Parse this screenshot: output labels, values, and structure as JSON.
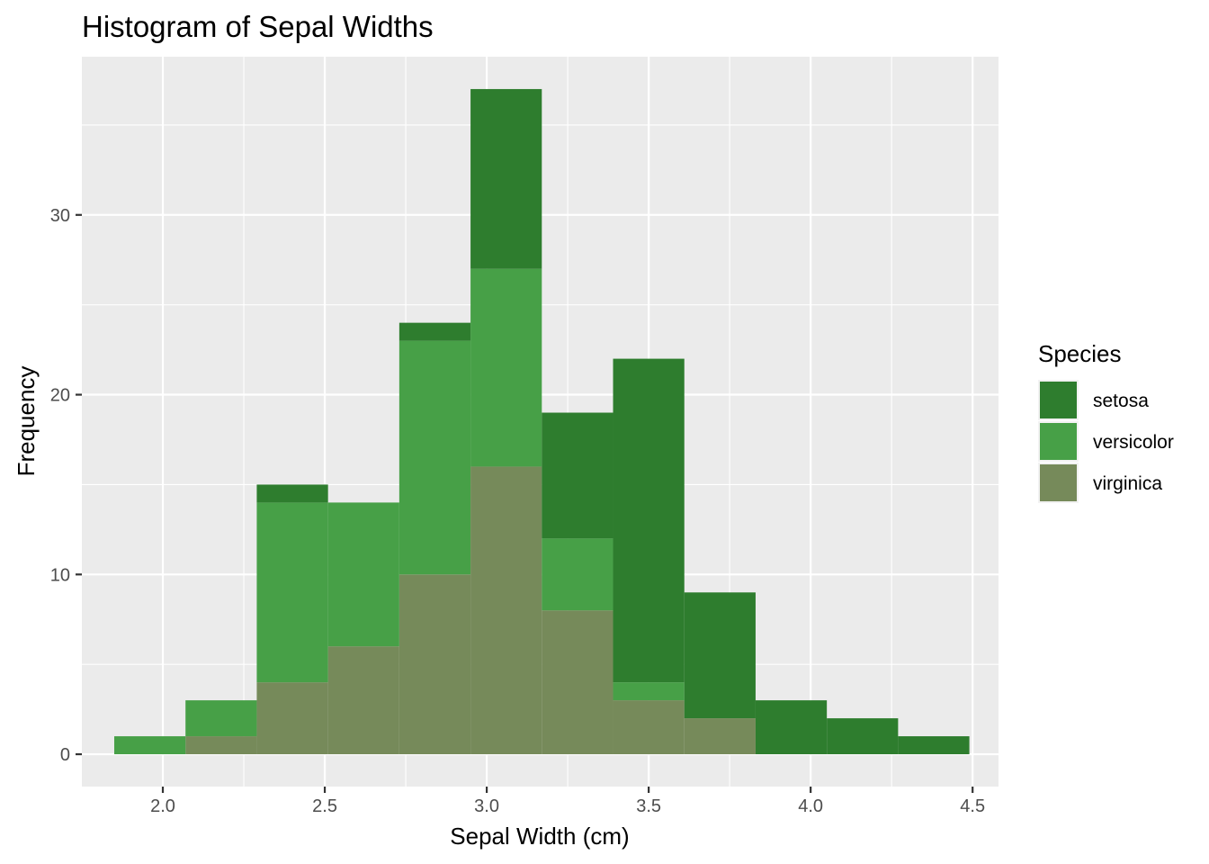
{
  "chart_data": {
    "type": "bar",
    "title": "Histogram of Sepal Widths",
    "xlabel": "Sepal Width (cm)",
    "ylabel": "Frequency",
    "legend_title": "Species",
    "legend_position": "right",
    "stacked": true,
    "grid": true,
    "xlim": [
      1.75,
      4.58
    ],
    "ylim": [
      -1.8,
      38.8
    ],
    "x_ticks": [
      2.0,
      2.5,
      3.0,
      3.5,
      4.0,
      4.5
    ],
    "x_tick_labels": [
      "2.0",
      "2.5",
      "3.0",
      "3.5",
      "4.0",
      "4.5"
    ],
    "y_ticks": [
      0,
      10,
      20,
      30
    ],
    "y_tick_labels": [
      "0",
      "10",
      "20",
      "30"
    ],
    "bin_edges": [
      1.85,
      2.07,
      2.29,
      2.51,
      2.73,
      2.95,
      3.17,
      3.39,
      3.61,
      3.83,
      4.05,
      4.27,
      4.49
    ],
    "series": [
      {
        "name": "setosa",
        "color": "#2e7d2e",
        "values": [
          0,
          0,
          1,
          0,
          1,
          10,
          7,
          18,
          7,
          3,
          2,
          1
        ]
      },
      {
        "name": "versicolor",
        "color": "#47a047",
        "values": [
          1,
          2,
          10,
          8,
          13,
          11,
          4,
          1,
          0,
          0,
          0,
          0
        ]
      },
      {
        "name": "virginica",
        "color": "#768a5a",
        "values": [
          0,
          1,
          4,
          6,
          10,
          16,
          8,
          3,
          2,
          0,
          0,
          0
        ]
      }
    ]
  }
}
